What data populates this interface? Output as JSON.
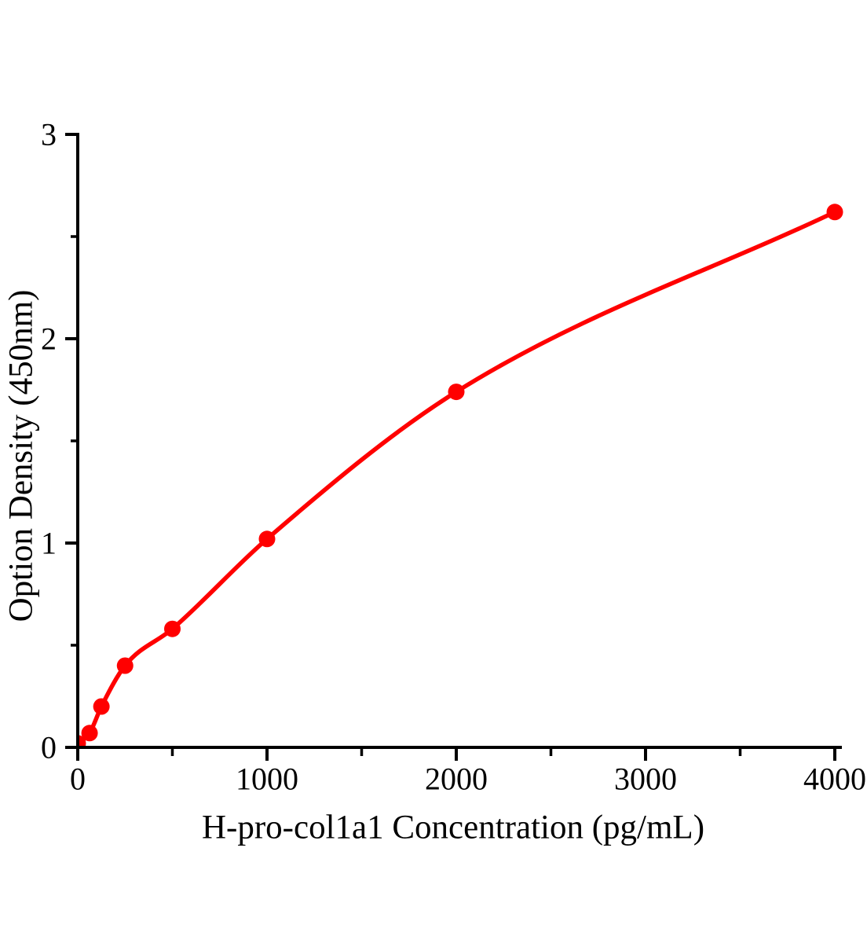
{
  "figure": {
    "background": "#ffffff",
    "description": "ELISA standard curve"
  },
  "chart_data": {
    "type": "scatter",
    "title": "",
    "xlabel": "H-pro-col1a1 Concentration（pg/mL）",
    "ylabel": "Option Density（450nm）",
    "points": [
      {
        "x": 0,
        "y": 0.02
      },
      {
        "x": 62.5,
        "y": 0.07
      },
      {
        "x": 125,
        "y": 0.2
      },
      {
        "x": 250,
        "y": 0.4
      },
      {
        "x": 500,
        "y": 0.58
      },
      {
        "x": 1000,
        "y": 1.02
      },
      {
        "x": 2000,
        "y": 1.74
      },
      {
        "x": 4000,
        "y": 2.62
      }
    ],
    "curve_style": "smooth monotone fit through points",
    "xlim": [
      0,
      4040
    ],
    "ylim": [
      0,
      3
    ],
    "x_major_ticks": [
      0,
      1000,
      2000,
      3000,
      4000
    ],
    "x_minor_ticks": [
      500,
      1500,
      2500,
      3500
    ],
    "y_major_ticks": [
      0,
      1,
      2,
      3
    ],
    "y_minor_ticks": [
      0.5,
      1.5,
      2.5
    ],
    "grid": "off",
    "legend": "none",
    "colors": {
      "curve": "#ff0000",
      "marker": "#ff0000",
      "axis": "#000000",
      "text": "#000000"
    }
  }
}
